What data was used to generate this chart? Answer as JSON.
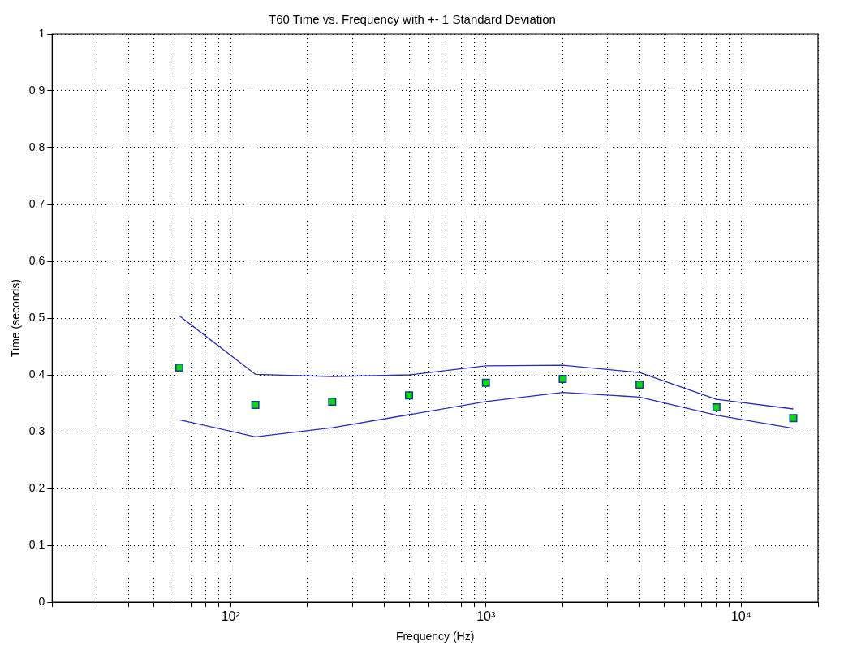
{
  "chart_data": {
    "type": "line",
    "title": "T60 Time vs. Frequency with +- 1 Standard Deviation",
    "xlabel": "Frequency (Hz)",
    "ylabel": "Time (seconds)",
    "x": [
      63,
      125,
      250,
      500,
      1000,
      2000,
      4000,
      8000,
      16000
    ],
    "series": [
      {
        "color": "#2a2ac8",
        "marker": "none",
        "values": [
          0.504,
          0.401,
          0.397,
          0.4,
          0.416,
          0.417,
          0.404,
          0.357,
          0.34
        ]
      },
      {
        "color": "#2a2ac8",
        "marker": "none",
        "values": [
          0.321,
          0.291,
          0.307,
          0.33,
          0.353,
          0.369,
          0.361,
          0.329,
          0.306
        ]
      },
      {
        "type": "scatter",
        "color": "#00e000",
        "marker": "square",
        "values": [
          0.413,
          0.347,
          0.353,
          0.364,
          0.386,
          0.393,
          0.383,
          0.343,
          0.324
        ]
      }
    ],
    "log": "x",
    "xlim": [
      20,
      20000
    ],
    "xticks": [
      {
        "value": 20,
        "label": null
      },
      {
        "value": 30,
        "label": null
      },
      {
        "value": 40,
        "label": null
      },
      {
        "value": 50,
        "label": null
      },
      {
        "value": 60,
        "label": null
      },
      {
        "value": 70,
        "label": null
      },
      {
        "value": 80,
        "label": null
      },
      {
        "value": 90,
        "label": null
      },
      {
        "value": 100,
        "label": "10²"
      },
      {
        "value": 200,
        "label": null
      },
      {
        "value": 300,
        "label": null
      },
      {
        "value": 400,
        "label": null
      },
      {
        "value": 500,
        "label": null
      },
      {
        "value": 600,
        "label": null
      },
      {
        "value": 700,
        "label": null
      },
      {
        "value": 800,
        "label": null
      },
      {
        "value": 900,
        "label": null
      },
      {
        "value": 1000,
        "label": "10³"
      },
      {
        "value": 2000,
        "label": null
      },
      {
        "value": 3000,
        "label": null
      },
      {
        "value": 4000,
        "label": null
      },
      {
        "value": 5000,
        "label": null
      },
      {
        "value": 6000,
        "label": null
      },
      {
        "value": 7000,
        "label": null
      },
      {
        "value": 8000,
        "label": null
      },
      {
        "value": 9000,
        "label": null
      },
      {
        "value": 10000,
        "label": "10⁴"
      },
      {
        "value": 20000,
        "label": null
      }
    ],
    "ylim": [
      0,
      1
    ],
    "yticks": [
      0,
      0.1,
      0.2,
      0.3,
      0.4,
      0.5,
      0.6,
      0.7,
      0.8,
      0.9,
      1
    ],
    "grid": true,
    "legend": false,
    "line_style": "solid"
  }
}
